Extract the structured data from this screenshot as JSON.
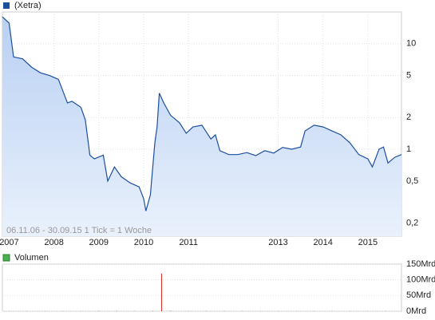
{
  "chart_data": [
    {
      "type": "area-line",
      "annotation": "06.11.06 - 30.09.15   1 Tick = 1 Woche",
      "x": [
        2006.85,
        2007.0,
        2007.1,
        2007.3,
        2007.5,
        2007.7,
        2007.9,
        2008.1,
        2008.3,
        2008.4,
        2008.6,
        2008.7,
        2008.8,
        2008.9,
        2009.1,
        2009.2,
        2009.35,
        2009.5,
        2009.7,
        2009.9,
        2010.0,
        2010.05,
        2010.15,
        2010.25,
        2010.3,
        2010.35,
        2010.45,
        2010.6,
        2010.8,
        2010.95,
        2011.1,
        2011.3,
        2011.5,
        2011.6,
        2011.7,
        2011.9,
        2012.1,
        2012.3,
        2012.5,
        2012.7,
        2012.9,
        2013.1,
        2013.3,
        2013.5,
        2013.6,
        2013.8,
        2014.0,
        2014.2,
        2014.4,
        2014.6,
        2014.8,
        2015.0,
        2015.1,
        2015.25,
        2015.35,
        2015.45,
        2015.6,
        2015.75
      ],
      "series": [
        {
          "name": "(Xetra)",
          "color": "#1c4fa0",
          "values": [
            18,
            15.7,
            7.5,
            7.2,
            6,
            5.3,
            5,
            4.6,
            2.75,
            2.85,
            2.5,
            1.9,
            0.88,
            0.81,
            0.88,
            0.5,
            0.68,
            0.55,
            0.48,
            0.44,
            0.34,
            0.26,
            0.37,
            1.15,
            1.63,
            3.4,
            2.75,
            2.1,
            1.78,
            1.42,
            1.63,
            1.69,
            1.25,
            1.37,
            0.97,
            0.89,
            0.89,
            0.93,
            0.87,
            0.97,
            0.92,
            1.04,
            1,
            1.05,
            1.49,
            1.69,
            1.63,
            1.49,
            1.37,
            1.15,
            0.89,
            0.81,
            0.68,
            1,
            1.05,
            0.74,
            0.84,
            0.89
          ]
        }
      ],
      "xlim": [
        2006.85,
        2015.75
      ],
      "xticks": [
        2007,
        2008,
        2009,
        2010,
        2011,
        2013,
        2014,
        2015
      ],
      "ylim": [
        0.15,
        20
      ],
      "log_scale": true,
      "yticks": [
        10,
        5,
        2,
        1,
        {
          "value": 0.5,
          "label": "0,5"
        },
        {
          "value": 0.2,
          "label": "0,2"
        }
      ],
      "grid": true
    },
    {
      "type": "bar",
      "x": [
        2007.0,
        2007.4,
        2007.8,
        2008.2,
        2008.6,
        2009.0,
        2009.4,
        2009.8,
        2010.2,
        2010.4,
        2010.6,
        2011.0,
        2011.4,
        2011.8,
        2012.2,
        2012.6,
        2013.0,
        2013.4,
        2013.8,
        2014.2,
        2014.6,
        2015.0,
        2015.4
      ],
      "series": [
        {
          "name": "Volumen",
          "color": "#4caf50",
          "values": [
            1,
            1,
            1,
            1,
            1,
            1.5,
            1.5,
            1,
            1.5,
            120,
            2,
            1,
            1,
            1,
            1,
            1,
            1,
            1,
            1,
            1,
            1,
            1,
            1
          ],
          "colors": [
            "#4caf50",
            "#4caf50",
            "#4caf50",
            "#4caf50",
            "#4caf50",
            "#4caf50",
            "#4caf50",
            "#4caf50",
            "#4caf50",
            "#d62020",
            "#4caf50",
            "#4caf50",
            "#4caf50",
            "#4caf50",
            "#4caf50",
            "#4caf50",
            "#4caf50",
            "#4caf50",
            "#4caf50",
            "#4caf50",
            "#4caf50",
            "#4caf50",
            "#4caf50"
          ]
        }
      ],
      "xlim": [
        2006.85,
        2015.75
      ],
      "ylim": [
        0,
        150
      ],
      "yticks": [
        {
          "value": 150,
          "label": "150Mrd"
        },
        {
          "value": 100,
          "label": "100Mrd"
        },
        {
          "value": 50,
          "label": "50Mrd"
        },
        {
          "value": 0,
          "label": "0Mrd"
        }
      ],
      "grid": true
    }
  ]
}
